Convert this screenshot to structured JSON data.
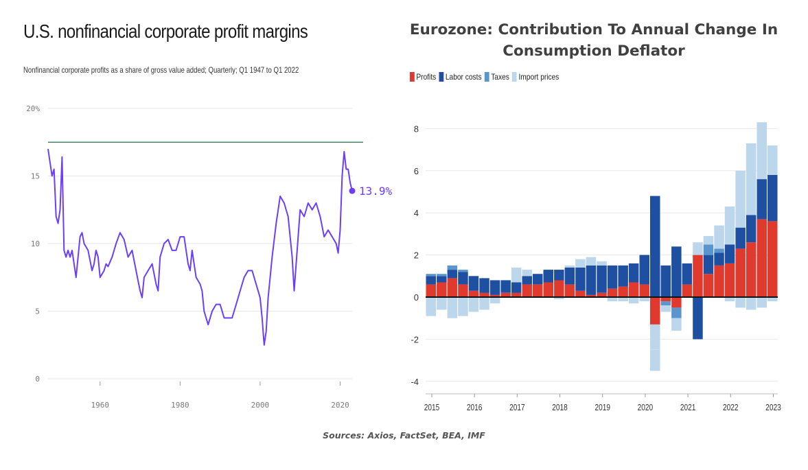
{
  "left": {
    "title": "U.S. nonfinancial corporate profit margins",
    "subtitle": "Nonfinancial corporate profits as a share of gross value added; Quarterly; Q1 1947 to Q1 2022"
  },
  "right": {
    "title_line1": "Eurozone: Contribution To Annual Change In",
    "title_line2": "Consumption Deflator"
  },
  "sources": "Sources: Axios, FactSet, BEA, IMF",
  "chart_data": [
    {
      "type": "line",
      "title": "U.S. nonfinancial corporate profit margins",
      "subtitle": "Nonfinancial corporate profits as a share of gross value added; Quarterly; Q1 1947 to Q1 2022",
      "ylim": [
        0,
        20
      ],
      "xlim": [
        1947,
        2023
      ],
      "y_ticks": [
        "0",
        "5",
        "10",
        "15",
        "20%"
      ],
      "y_tick_values": [
        0,
        5,
        10,
        15,
        20
      ],
      "x_ticks": [
        "1960",
        "1980",
        "2000",
        "2020"
      ],
      "x_tick_values": [
        1960,
        1980,
        2000,
        2020
      ],
      "grid": true,
      "color": "#6a3dff",
      "reference_line": {
        "value": 17.5,
        "color": "#1f6b4a"
      },
      "end_label": "13.9%",
      "end_value": 13.9,
      "x": [
        1947,
        1948,
        1948.5,
        1949,
        1949.5,
        1950,
        1950.5,
        1951,
        1951.5,
        1952,
        1952.5,
        1953,
        1954,
        1954.5,
        1955,
        1955.5,
        1956,
        1957,
        1958,
        1958.5,
        1959,
        1959.5,
        1960,
        1961,
        1961.5,
        1962,
        1963,
        1964,
        1965,
        1966,
        1967,
        1968,
        1969,
        1970,
        1970.5,
        1971,
        1972,
        1973,
        1974,
        1974.5,
        1975,
        1976,
        1977,
        1978,
        1979,
        1980,
        1981,
        1982,
        1982.5,
        1983,
        1984,
        1985,
        1985.5,
        1986,
        1987,
        1988,
        1989,
        1990,
        1991,
        1992,
        1993,
        1994,
        1995,
        1996,
        1997,
        1998,
        1999,
        2000,
        2000.5,
        2001,
        2001.5,
        2002,
        2003,
        2004,
        2005,
        2006,
        2007,
        2008,
        2008.5,
        2009,
        2010,
        2011,
        2012,
        2013,
        2014,
        2015,
        2016,
        2017,
        2018,
        2019,
        2019.5,
        2020,
        2020.5,
        2021,
        2021.5,
        2022,
        2022.5,
        2023
      ],
      "values": [
        17.0,
        15.0,
        15.5,
        12.0,
        11.5,
        12.5,
        16.4,
        9.5,
        9.0,
        9.5,
        9.0,
        9.5,
        7.5,
        9.0,
        10.5,
        10.8,
        10.0,
        9.5,
        8.0,
        8.5,
        9.5,
        9.0,
        7.5,
        8.0,
        8.5,
        8.3,
        9.0,
        10.0,
        10.8,
        10.3,
        9.0,
        9.5,
        8.0,
        6.5,
        6.0,
        7.5,
        8.0,
        8.5,
        7.0,
        6.5,
        9.0,
        10.0,
        10.3,
        9.5,
        9.5,
        10.5,
        10.5,
        8.5,
        8.0,
        9.5,
        7.5,
        7.0,
        6.5,
        5.0,
        4.0,
        5.0,
        5.5,
        5.5,
        4.5,
        4.5,
        4.5,
        5.5,
        6.5,
        7.5,
        8.0,
        8.0,
        7.0,
        6.0,
        4.5,
        2.5,
        3.5,
        6.0,
        9.0,
        11.5,
        13.5,
        13.0,
        12.0,
        9.0,
        6.5,
        8.5,
        12.5,
        12.0,
        13.0,
        12.5,
        13.0,
        12.0,
        10.5,
        11.0,
        10.5,
        10.0,
        9.3,
        11.0,
        15.0,
        16.8,
        15.5,
        15.5,
        14.5,
        13.9
      ]
    },
    {
      "type": "bar",
      "stacked": true,
      "title": "Eurozone: Contribution To Annual Change In Consumption Deflator",
      "ylim": [
        -4,
        8
      ],
      "y_ticks": [
        "-4",
        "-2",
        "0",
        "2",
        "4",
        "6",
        "8"
      ],
      "y_tick_values": [
        -4,
        -2,
        0,
        2,
        4,
        6,
        8
      ],
      "x_ticks": [
        "2015",
        "2016",
        "2017",
        "2018",
        "2019",
        "2020",
        "2021",
        "2022",
        "2023"
      ],
      "grid": true,
      "legend_position": "top-left",
      "categories": [
        "2015Q1",
        "2015Q2",
        "2015Q3",
        "2015Q4",
        "2016Q1",
        "2016Q2",
        "2016Q3",
        "2016Q4",
        "2017Q1",
        "2017Q2",
        "2017Q3",
        "2017Q4",
        "2018Q1",
        "2018Q2",
        "2018Q3",
        "2018Q4",
        "2019Q1",
        "2019Q2",
        "2019Q3",
        "2019Q4",
        "2020Q1",
        "2020Q2",
        "2020Q3",
        "2020Q4",
        "2021Q1",
        "2021Q2",
        "2021Q3",
        "2021Q4",
        "2022Q1",
        "2022Q2",
        "2022Q3",
        "2022Q4",
        "2023Q1"
      ],
      "series": [
        {
          "name": "Profits",
          "color": "#e03a2f",
          "values": [
            0.6,
            0.7,
            0.9,
            0.6,
            0.3,
            0.2,
            0.1,
            0.2,
            0.2,
            0.6,
            0.6,
            0.7,
            0.8,
            0.6,
            0.3,
            0.1,
            0.2,
            0.4,
            0.5,
            0.7,
            0.6,
            -1.3,
            -0.2,
            -0.5,
            0.6,
            2.0,
            1.1,
            1.5,
            1.6,
            2.3,
            2.6,
            3.7,
            3.6
          ]
        },
        {
          "name": "Labor costs",
          "color": "#1f4fa0",
          "values": [
            0.4,
            0.3,
            0.4,
            0.6,
            0.7,
            0.7,
            0.7,
            0.6,
            0.5,
            0.4,
            0.5,
            0.6,
            0.5,
            0.8,
            1.1,
            1.4,
            1.3,
            1.1,
            1.0,
            0.9,
            1.4,
            4.8,
            1.5,
            2.4,
            1.0,
            -2.0,
            0.9,
            0.6,
            0.9,
            1.0,
            1.3,
            1.9,
            2.2
          ]
        },
        {
          "name": "Taxes",
          "color": "#5b95cd",
          "values": [
            0.1,
            0.1,
            0.2,
            0.1,
            0.0,
            0.0,
            0.0,
            0.0,
            0.0,
            0.0,
            0.0,
            0.0,
            0.0,
            0.0,
            0.0,
            0.0,
            0.0,
            0.0,
            0.0,
            0.0,
            0.0,
            0.0,
            -0.2,
            -0.5,
            0.0,
            0.0,
            0.5,
            0.2,
            0.0,
            0.0,
            0.0,
            0.0,
            0.0
          ]
        },
        {
          "name": "Import prices",
          "color": "#bcd6ec",
          "values": [
            -0.9,
            -0.6,
            -1.0,
            -0.9,
            -0.7,
            -0.6,
            -0.3,
            0.0,
            0.7,
            0.3,
            0.0,
            0.0,
            -0.1,
            0.1,
            0.4,
            0.4,
            0.2,
            -0.2,
            -0.2,
            -0.3,
            -0.2,
            -1.2,
            -0.3,
            -0.6,
            0.0,
            0.6,
            0.4,
            1.1,
            1.8,
            2.7,
            3.4,
            2.7,
            1.4
          ]
        }
      ],
      "negative_extra": {
        "2020Q2": -1.0,
        "2022Q1": -0.2,
        "2022Q2": -0.5,
        "2022Q3": -0.6,
        "2022Q4": -0.5,
        "2023Q1": -0.2
      }
    }
  ]
}
